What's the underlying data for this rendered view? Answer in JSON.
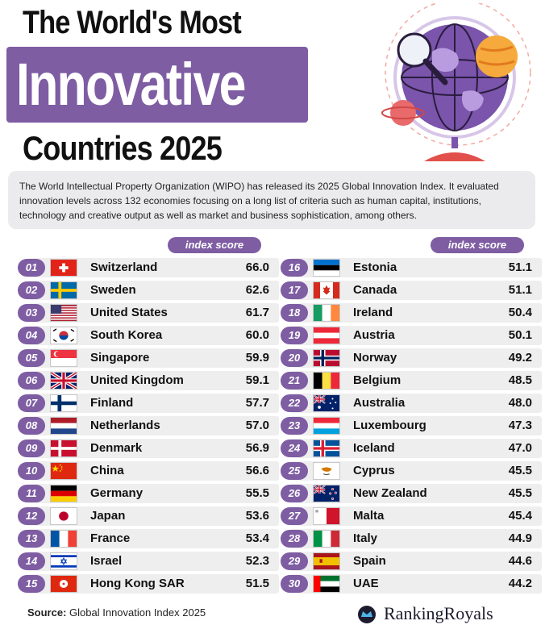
{
  "title": {
    "line1": "The World's Most",
    "line2": "Innovative",
    "line3": "Countries 2025"
  },
  "description": "The World Intellectual Property Organization (WIPO) has released its 2025 Global Innovation Index. It evaluated innovation levels across 132 economies focusing on a long list of criteria such as human capital, institutions, technology and creative output as well as market and business sophistication, among others.",
  "column_header": "index score",
  "colors": {
    "accent": "#7e5da3",
    "row_background": "#eeeeef",
    "description_background": "#ebebee"
  },
  "chart_data": {
    "type": "table",
    "value_label": "index score",
    "rows": [
      {
        "rank": "01",
        "country": "Switzerland",
        "score": "66.0",
        "flag": "switzerland-flag-icon"
      },
      {
        "rank": "02",
        "country": "Sweden",
        "score": "62.6",
        "flag": "sweden-flag-icon"
      },
      {
        "rank": "03",
        "country": "United States",
        "score": "61.7",
        "flag": "usa-flag-icon"
      },
      {
        "rank": "04",
        "country": "South Korea",
        "score": "60.0",
        "flag": "south-korea-flag-icon"
      },
      {
        "rank": "05",
        "country": "Singapore",
        "score": "59.9",
        "flag": "singapore-flag-icon"
      },
      {
        "rank": "06",
        "country": "United Kingdom",
        "score": "59.1",
        "flag": "uk-flag-icon"
      },
      {
        "rank": "07",
        "country": "Finland",
        "score": "57.7",
        "flag": "finland-flag-icon"
      },
      {
        "rank": "08",
        "country": "Netherlands",
        "score": "57.0",
        "flag": "netherlands-flag-icon"
      },
      {
        "rank": "09",
        "country": "Denmark",
        "score": "56.9",
        "flag": "denmark-flag-icon"
      },
      {
        "rank": "10",
        "country": "China",
        "score": "56.6",
        "flag": "china-flag-icon"
      },
      {
        "rank": "11",
        "country": "Germany",
        "score": "55.5",
        "flag": "germany-flag-icon"
      },
      {
        "rank": "12",
        "country": "Japan",
        "score": "53.6",
        "flag": "japan-flag-icon"
      },
      {
        "rank": "13",
        "country": "France",
        "score": "53.4",
        "flag": "france-flag-icon"
      },
      {
        "rank": "14",
        "country": "Israel",
        "score": "52.3",
        "flag": "israel-flag-icon"
      },
      {
        "rank": "15",
        "country": "Hong Kong SAR",
        "score": "51.5",
        "flag": "hong-kong-flag-icon"
      },
      {
        "rank": "16",
        "country": "Estonia",
        "score": "51.1",
        "flag": "estonia-flag-icon"
      },
      {
        "rank": "17",
        "country": "Canada",
        "score": "51.1",
        "flag": "canada-flag-icon"
      },
      {
        "rank": "18",
        "country": "Ireland",
        "score": "50.4",
        "flag": "ireland-flag-icon"
      },
      {
        "rank": "19",
        "country": "Austria",
        "score": "50.1",
        "flag": "austria-flag-icon"
      },
      {
        "rank": "20",
        "country": "Norway",
        "score": "49.2",
        "flag": "norway-flag-icon"
      },
      {
        "rank": "21",
        "country": "Belgium",
        "score": "48.5",
        "flag": "belgium-flag-icon"
      },
      {
        "rank": "22",
        "country": "Australia",
        "score": "48.0",
        "flag": "australia-flag-icon"
      },
      {
        "rank": "23",
        "country": "Luxembourg",
        "score": "47.3",
        "flag": "luxembourg-flag-icon"
      },
      {
        "rank": "24",
        "country": "Iceland",
        "score": "47.0",
        "flag": "iceland-flag-icon"
      },
      {
        "rank": "25",
        "country": "Cyprus",
        "score": "45.5",
        "flag": "cyprus-flag-icon"
      },
      {
        "rank": "26",
        "country": "New Zealand",
        "score": "45.5",
        "flag": "new-zealand-flag-icon"
      },
      {
        "rank": "27",
        "country": "Malta",
        "score": "45.4",
        "flag": "malta-flag-icon"
      },
      {
        "rank": "28",
        "country": "Italy",
        "score": "44.9",
        "flag": "italy-flag-icon"
      },
      {
        "rank": "29",
        "country": "Spain",
        "score": "44.6",
        "flag": "spain-flag-icon"
      },
      {
        "rank": "30",
        "country": "UAE",
        "score": "44.2",
        "flag": "uae-flag-icon"
      }
    ]
  },
  "source": {
    "label": "Source:",
    "text": "Global Innovation Index 2025"
  },
  "brand": {
    "name": "RankingRoyals",
    "logo": "ranking-royals-logo-icon"
  }
}
